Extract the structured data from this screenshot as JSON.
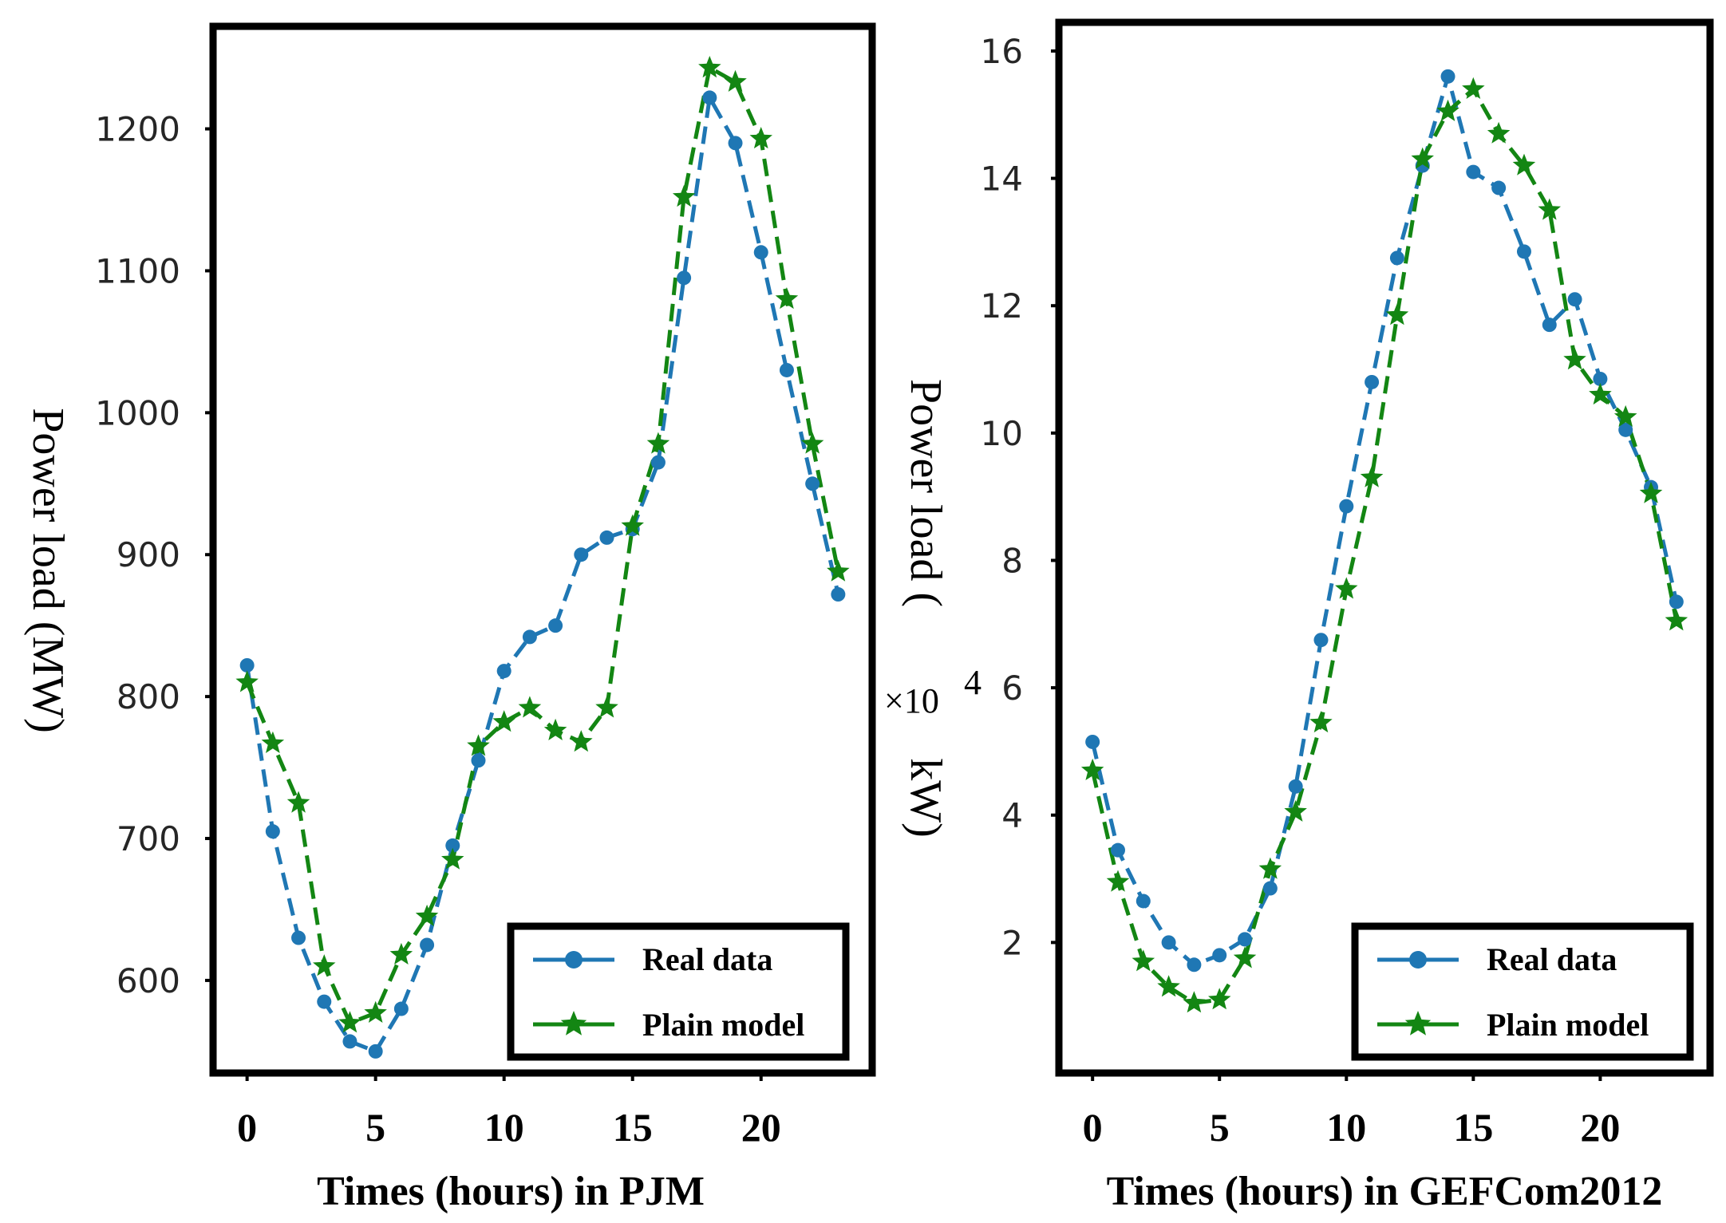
{
  "colors": {
    "real": "#1f77b4",
    "model": "#138613",
    "frame": "#000000"
  },
  "chart_data": [
    {
      "type": "line",
      "xlabel": "Times (hours) in PJM",
      "ylabel": "Power load (MW)",
      "xlim": [
        -1.2,
        24.2
      ],
      "ylim": [
        537,
        1270
      ],
      "xticks": [
        0,
        5,
        10,
        15,
        20
      ],
      "yticks": [
        600,
        700,
        800,
        900,
        1000,
        1100,
        1200
      ],
      "x": [
        0,
        1,
        2,
        3,
        4,
        5,
        6,
        7,
        8,
        9,
        10,
        11,
        12,
        13,
        14,
        15,
        16,
        17,
        18,
        19,
        20,
        21,
        22,
        23
      ],
      "legend": {
        "position": "lower-right"
      },
      "series": [
        {
          "name": "Real data",
          "marker": "circle",
          "values": [
            822,
            705,
            630,
            585,
            557,
            550,
            580,
            625,
            695,
            755,
            818,
            842,
            850,
            900,
            912,
            918,
            965,
            1095,
            1222,
            1190,
            1113,
            1030,
            950,
            872
          ]
        },
        {
          "name": "Plain model",
          "marker": "star",
          "values": [
            810,
            767,
            725,
            610,
            570,
            577,
            618,
            645,
            685,
            765,
            782,
            792,
            776,
            768,
            792,
            920,
            978,
            1152,
            1243,
            1233,
            1193,
            1080,
            978,
            888
          ]
        }
      ]
    },
    {
      "type": "line",
      "xlabel": "Times (hours) in GEFCom2012",
      "ylabel": "Power load (",
      "ylabel_multiplier": "×10",
      "ylabel_exponent": "4",
      "ylabel_unit": "kW)",
      "xlim": [
        -1.2,
        24.2
      ],
      "ylim": [
        0.0,
        16.4
      ],
      "xticks": [
        0,
        5,
        10,
        15,
        20
      ],
      "yticks": [
        2,
        4,
        6,
        8,
        10,
        12,
        14,
        16
      ],
      "x": [
        0,
        1,
        2,
        3,
        4,
        5,
        6,
        7,
        8,
        9,
        10,
        11,
        12,
        13,
        14,
        15,
        16,
        17,
        18,
        19,
        20,
        21,
        22,
        23
      ],
      "legend": {
        "position": "lower-right"
      },
      "series": [
        {
          "name": "Real data",
          "marker": "circle",
          "values": [
            5.15,
            3.45,
            2.65,
            2.0,
            1.65,
            1.8,
            2.05,
            2.85,
            4.45,
            6.75,
            8.85,
            10.8,
            12.75,
            14.2,
            15.6,
            14.1,
            13.85,
            12.85,
            11.7,
            12.1,
            10.85,
            10.05,
            9.15,
            7.35
          ]
        },
        {
          "name": "Plain model",
          "marker": "star",
          "values": [
            4.7,
            2.95,
            1.7,
            1.3,
            1.05,
            1.1,
            1.75,
            3.15,
            4.05,
            5.45,
            7.55,
            9.3,
            11.85,
            14.3,
            15.05,
            15.4,
            14.7,
            14.2,
            13.5,
            11.15,
            10.6,
            10.25,
            9.05,
            7.05
          ]
        }
      ]
    }
  ]
}
